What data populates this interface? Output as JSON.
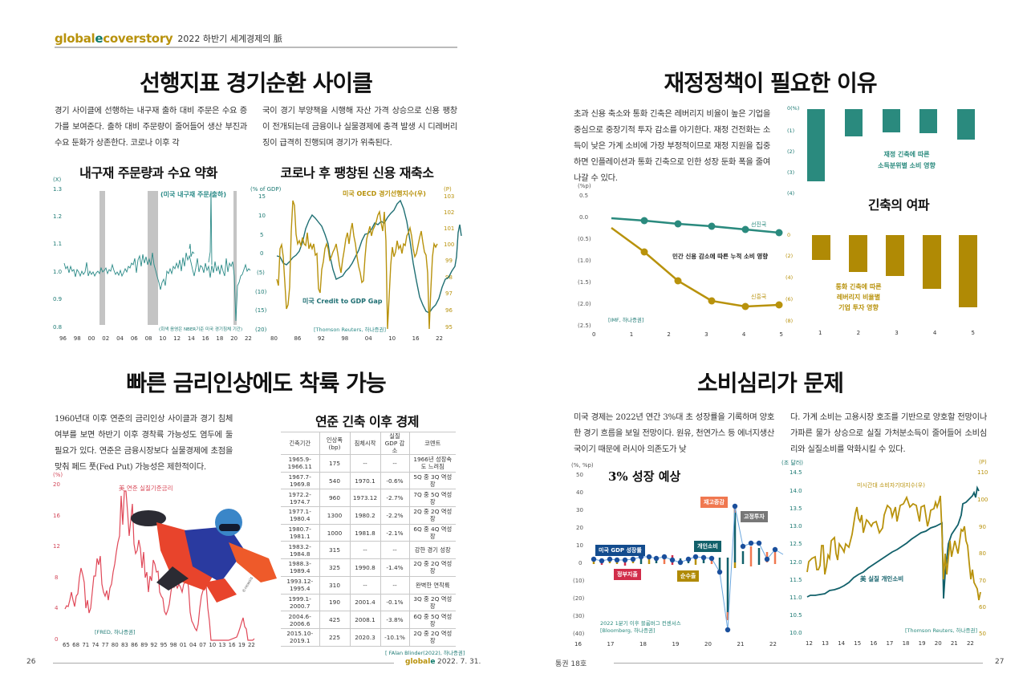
{
  "header": {
    "brand_part1": "global",
    "brand_part2": "e",
    "brand_part3": "coverstory",
    "subtitle": "2022 하반기 세계경제의 脈"
  },
  "section1": {
    "title": "선행지표 경기순환 사이클",
    "col1": "경기 사이클에 선행하는 내구재 출하 대비 주문은 수요 증가를 보여준다. 출하 대비 주문량이 줄어들어 생산 부진과 수요 둔화가 상존한다. 코로나 이후 각",
    "col2": "국이 경기 부양책을 시행해 자산 가격 상승으로 신용 팽창이 전개되는데 금융이나 실물경제에 충격 발생 시 디레버리징이 급격히 진행되며 경기가 위축된다.",
    "chart1_title": "내구재 주문량과 수요 약화",
    "chart2_title": "코로나 후 팽창된 신용 재축소"
  },
  "section2": {
    "title": "재정정책이 필요한 이유",
    "body": "초과 신용 축소와 통화 긴축은 레버리지 비율이 높은 기업을 중심으로 중장기적 투자 감소를 야기한다. 재정 건전화는 소득이 낮은 가계 소비에 가장 부정적이므로 재정 지원을 집중하면 인플레이션과 통화 긴축으로 인한 성장 둔화 폭을 줄여나갈 수 있다.",
    "subtitle_right": "긴축의 여파"
  },
  "section3": {
    "title": "빠른 금리인상에도 착륙 가능",
    "body": "1960년대 이후 연준의 금리인상 사이클과 경기 침체 여부를 보면 하반기 이후 경착륙 가능성도 염두에 둘 필요가 있다. 연준은 금융시장보다 실물경제에 초점을 맞춰 페드 풋(Fed Put) 가능성은 제한적이다.",
    "photo_credit": "©newsis",
    "table_title": "연준 긴축 이후 경제",
    "table": {
      "headers": [
        "긴축기간",
        "인상폭(bp)",
        "침체시작",
        "실질 GDP 감소",
        "코멘트"
      ],
      "rows": [
        [
          "1965.9-1966.11",
          "175",
          "--",
          "--",
          "1966년 성장속도 느려짐"
        ],
        [
          "1967.7-1969.8",
          "540",
          "1970.1",
          "-0.6%",
          "5Q 중 3Q 역성장"
        ],
        [
          "1972.2-1974.7",
          "960",
          "1973.12",
          "-2.7%",
          "7Q 중 5Q 역성장"
        ],
        [
          "1977.1-1980.4",
          "1300",
          "1980.2",
          "-2.2%",
          "2Q 중 2Q 역성장"
        ],
        [
          "1980.7-1981.1",
          "1000",
          "1981.8",
          "-2.1%",
          "6Q 중 4Q 역성장"
        ],
        [
          "1983.2-1984.8",
          "315",
          "--",
          "--",
          "강한 경기 성장"
        ],
        [
          "1988.3-1989.4",
          "325",
          "1990.8",
          "-1.4%",
          "2Q 중 2Q 역성장"
        ],
        [
          "1993.12-1995.4",
          "310",
          "--",
          "--",
          "완벽한 연착륙"
        ],
        [
          "1999.1-2000.7",
          "190",
          "2001.4",
          "-0.1%",
          "3Q 중 2Q 역성장"
        ],
        [
          "2004.6-2006.6",
          "425",
          "2008.1",
          "-3.8%",
          "6Q 중 5Q 역성장"
        ],
        [
          "2015.10-2019.1",
          "225",
          "2020.3",
          "-10.1%",
          "2Q 중 2Q 역성장"
        ]
      ],
      "source": "[ FAlan Blinder(2022), 하나증권]"
    }
  },
  "section4": {
    "title": "소비심리가 문제",
    "col1": "미국 경제는 2022년 연간 3%대 초 성장률을 기록하며 양호한 경기 흐름을 보일 전망이다. 원유, 천연가스 등 에너지생산국이기 때문에 러시아 의존도가 낮",
    "col2": "다. 가계 소비는 고용시장 호조를 기반으로 양호할 전망이나 가파른 물가 상승으로 실질 가처분소득이 줄어들어 소비심리와 실질소비를 악화시킬 수 있다.",
    "chart_title": "3% 성장 예상"
  },
  "footer": {
    "page_left": "26",
    "page_right": "27",
    "brand": "globale",
    "date": "2022. 7. 31.",
    "issue": "통권 18호"
  },
  "chart_data": [
    {
      "type": "line",
      "title": "내구재 주문량과 수요 약화",
      "series": [
        {
          "name": "(미국 내구재 주문/출하)",
          "color": "#2a8a87"
        }
      ],
      "ylabel": "(X)",
      "yticks": [
        "1.3",
        "1.2",
        "1.1",
        "1.0",
        "0.9",
        "0.8"
      ],
      "ylim": [
        0.8,
        1.3
      ],
      "xticks": [
        "96",
        "98",
        "00",
        "02",
        "04",
        "06",
        "08",
        "10",
        "12",
        "14",
        "16",
        "18",
        "20",
        "22"
      ],
      "shaded_recessions": [
        [
          "2001.3",
          "2001.11"
        ],
        [
          "2007.12",
          "2009.6"
        ],
        [
          "2020.2",
          "2020.4"
        ]
      ],
      "x": [
        1996,
        1997,
        1998,
        1999,
        2000,
        2000.5,
        2001,
        2002,
        2003,
        2004,
        2005,
        2006,
        2006.5,
        2007,
        2007.8,
        2008,
        2008.5,
        2009,
        2009.5,
        2010,
        2011,
        2012,
        2013,
        2013.8,
        2014.4,
        2015,
        2016,
        2017,
        2018,
        2019,
        2019.8,
        2020.2,
        2020.5,
        2021,
        2022
      ],
      "values": [
        1.02,
        0.99,
        0.98,
        0.97,
        0.98,
        1.1,
        0.97,
        0.95,
        0.96,
        0.99,
        1.01,
        1.03,
        1.06,
        1.05,
        1.02,
        1.08,
        0.99,
        0.93,
        0.87,
        0.99,
        1.0,
        1.04,
        1.02,
        1.1,
        1.27,
        0.99,
        0.98,
        1.0,
        0.99,
        1.0,
        1.05,
        0.82,
        0.96,
        1.02,
        1.02
      ],
      "annotations": [
        "(회색 음영은 NBER기준 미국 경기침체 기간)"
      ]
    },
    {
      "type": "line",
      "title": "코로나 후 팽창된 신용 재축소",
      "ylabel_left": "(% of GDP)",
      "ylabel_right": "(P)",
      "yticks_left": [
        "15",
        "10",
        "5",
        "0",
        "(5)",
        "(10)",
        "(15)",
        "(20)"
      ],
      "yticks_right": [
        "103",
        "102",
        "101",
        "100",
        "99",
        "98",
        "97",
        "96",
        "95"
      ],
      "xticks": [
        "80",
        "86",
        "92",
        "98",
        "04",
        "10",
        "16",
        "22"
      ],
      "series": [
        {
          "name": "미국 Credit to GDP Gap",
          "axis": "left",
          "color": "#1f6f73",
          "x": [
            1980,
            1982,
            1984,
            1986,
            1988,
            1990,
            1992,
            1994,
            1996,
            1998,
            2000,
            2002,
            2004,
            2006,
            2008,
            2010,
            2012,
            2014,
            2016,
            2018,
            2019.5,
            2020.5,
            2021.5
          ],
          "values": [
            -1,
            -3,
            -1,
            3,
            10,
            8,
            2,
            -7,
            -6,
            -3,
            5,
            3,
            8,
            10,
            12,
            0,
            -10,
            -16,
            -13,
            -7,
            -5,
            7,
            1
          ]
        },
        {
          "name": "미국 OECD 경기선행지수(우)",
          "axis": "right",
          "color": "#b8920c",
          "x": [
            1980,
            1981,
            1982,
            1983,
            1984,
            1985,
            1986,
            1988,
            1990,
            1991,
            1992,
            1994,
            1996,
            1998,
            2000,
            2002,
            2004,
            2006,
            2008,
            2009,
            2010,
            2012,
            2014,
            2016,
            2018,
            2020,
            2020.5,
            2021,
            2022
          ],
          "values": [
            98,
            100,
            96,
            102.5,
            102.5,
            100.5,
            100.2,
            100.5,
            99.8,
            97,
            99.5,
            100.5,
            99,
            100,
            101,
            98,
            100.5,
            101,
            102,
            95,
            100,
            100,
            101,
            99.5,
            100.5,
            95,
            100.5,
            100.5,
            100
          ]
        }
      ],
      "annotations": [
        "[Thomson Reuters, 하나증권]"
      ]
    },
    {
      "type": "bar",
      "title": "재정 긴축에 따른 소득분위별 소비 영향",
      "categories": [
        "1",
        "2",
        "3",
        "4",
        "5"
      ],
      "values": [
        -3.4,
        -1.3,
        -1.1,
        -1.15,
        -1.45
      ],
      "ylabel": "(%)",
      "yticks": [
        "0(%)",
        "(1)",
        "(2)",
        "(3)",
        "(4)"
      ],
      "ylim": [
        -4,
        0
      ],
      "color": "#2a8a7e"
    },
    {
      "type": "line",
      "title": "민간 신용 감소에 따른 누적 소비 영향",
      "ylabel": "(%p)",
      "x": [
        0,
        1,
        2,
        3,
        4,
        5
      ],
      "xticks": [
        "0",
        "1",
        "2",
        "3",
        "4",
        "5"
      ],
      "yticks": [
        "0.5",
        "0.0",
        "(0.5)",
        "(1.0)",
        "(1.5)",
        "(2.0)",
        "(2.5)"
      ],
      "ylim": [
        -2.5,
        0.5
      ],
      "series": [
        {
          "name": "선진국",
          "color": "#2a8a7e",
          "values": [
            -0.02,
            -0.05,
            -0.13,
            -0.21,
            -0.28,
            -0.36
          ]
        },
        {
          "name": "신흥국",
          "color": "#b8920c",
          "values": [
            -0.25,
            -0.78,
            -1.45,
            -1.92,
            -2.05,
            -2.02
          ]
        }
      ],
      "annotations": [
        "[IMF, 하나증권]"
      ]
    },
    {
      "type": "bar",
      "title": "통화 긴축에 따른 레버리지 비율별 기업 투자 영향",
      "categories": [
        "1",
        "2",
        "3",
        "4",
        "5"
      ],
      "values": [
        -2.3,
        -3.4,
        -3.8,
        -5.0,
        -6.7
      ],
      "yticks": [
        "0",
        "(2)",
        "(4)",
        "(6)",
        "(8)"
      ],
      "ylim": [
        -8,
        0
      ],
      "color": "#b08a05"
    },
    {
      "type": "line",
      "title": "美 연준 실질기준금리",
      "ylabel": "(%)",
      "yticks": [
        "20",
        "16",
        "12",
        "8",
        "4",
        "0"
      ],
      "ylim": [
        0,
        20
      ],
      "xticks": [
        "65",
        "68",
        "71",
        "74",
        "77",
        "80",
        "83",
        "86",
        "89",
        "92",
        "95",
        "98",
        "01",
        "04",
        "07",
        "10",
        "13",
        "16",
        "19",
        "22"
      ],
      "x": [
        1965,
        1966,
        1967,
        1968,
        1969,
        1970,
        1971,
        1972,
        1973,
        1974,
        1975,
        1976,
        1977,
        1978,
        1979,
        1980,
        1980.5,
        1981,
        1981.5,
        1982,
        1983,
        1984,
        1985,
        1986,
        1987,
        1988,
        1989,
        1990,
        1991,
        1992,
        1993,
        1994,
        1995,
        1996,
        1997,
        1998,
        1999,
        2000,
        2001,
        2002,
        2003,
        2004,
        2005,
        2006,
        2007,
        2008,
        2009,
        2015,
        2016,
        2017,
        2018,
        2019,
        2020,
        2021,
        2022
      ],
      "values": [
        4,
        4.5,
        4,
        6,
        9,
        8,
        4,
        5,
        11,
        12,
        6,
        5,
        6,
        8,
        11,
        17,
        9,
        19,
        12,
        14,
        9,
        11,
        8,
        6,
        7,
        8,
        10,
        8,
        5,
        3,
        3,
        5,
        6,
        5.5,
        5.5,
        5,
        5.5,
        6.5,
        2,
        1.5,
        1,
        1.5,
        3.5,
        5.2,
        5,
        2,
        0.2,
        0.2,
        0.5,
        1.2,
        2,
        2.5,
        0.2,
        0.1,
        0.5
      ],
      "color": "#d94b5a",
      "annotations": [
        "[FRED, 하나증권]"
      ]
    },
    {
      "type": "bar",
      "title": "3% 성장 예상",
      "ylabel": "(%, %p)",
      "yticks": [
        "50",
        "40",
        "30",
        "20",
        "10",
        "0",
        "(10)",
        "(20)",
        "(30)",
        "(40)"
      ],
      "ylim": [
        -40,
        50
      ],
      "xticks": [
        "16",
        "17",
        "18",
        "19",
        "20",
        "21",
        "22"
      ],
      "legend": [
        "미국 GDP 성장률",
        "정부지출",
        "순수출",
        "개인소비",
        "재고증감",
        "고정투자"
      ],
      "series": [
        {
          "name": "미국 GDP 성장률",
          "color": "#1a4f9c",
          "values": [
            2.3,
            1.5,
            2.3,
            1.9,
            1.8,
            2.3,
            3.0,
            3.5,
            2.9,
            3.3,
            2.2,
            1.1,
            2.4,
            3.2,
            2.8,
            2.1,
            -5.1,
            -31.2,
            33.8,
            4.5,
            6.3,
            6.7,
            2.3,
            6.9,
            -1.6
          ]
        }
      ],
      "annotations": [
        "2022 1분기 이후 블룸버그 컨센서스",
        "[Bloomberg, 하나증권]"
      ]
    },
    {
      "type": "line",
      "title": "美 실질 개인소비 / 미시간대 소비자기대지수",
      "ylabel_left": "(조 달러)",
      "ylabel_right": "(P)",
      "yticks_left": [
        "14.5",
        "14.0",
        "13.5",
        "13.0",
        "12.5",
        "12.0",
        "11.5",
        "11.0",
        "10.5",
        "10.0"
      ],
      "yticks_right": [
        "110",
        "100",
        "90",
        "80",
        "70",
        "60",
        "50"
      ],
      "xticks": [
        "12",
        "13",
        "14",
        "15",
        "16",
        "17",
        "18",
        "19",
        "20",
        "21",
        "22"
      ],
      "series": [
        {
          "name": "美 실질 개인소비",
          "axis": "left",
          "color": "#11606a",
          "x": [
            2012,
            2013,
            2014,
            2015,
            2016,
            2017,
            2018,
            2019,
            2020,
            2020.25,
            2020.5,
            2021,
            2021.5,
            2022
          ],
          "values": [
            11.0,
            11.15,
            11.3,
            11.6,
            11.9,
            12.2,
            12.5,
            12.9,
            13.2,
            11.0,
            12.5,
            13.3,
            13.7,
            14.0
          ]
        },
        {
          "name": "미시간대 소비자기대지수(우)",
          "axis": "right",
          "color": "#b8920c",
          "x": [
            2012,
            2013,
            2014,
            2015,
            2016,
            2017,
            2018,
            2019,
            2020,
            2020.3,
            2021,
            2021.5,
            2022,
            2022.3
          ],
          "values": [
            72,
            78,
            82,
            97,
            90,
            98,
            100,
            95,
            100,
            73,
            82,
            88,
            66,
            62
          ]
        }
      ],
      "annotations": [
        "[Thomson Reuters, 하나증권]"
      ]
    }
  ],
  "chart_labels": {
    "c1_series": "(미국 내구재 주문/출하)",
    "c1_note": "(회색 음영은 NBER기준 미국 경기침체 기간)",
    "c1_unit": "(X)",
    "c2_unit_left": "(% of GDP)",
    "c2_unit_right": "(P)",
    "c2_oecd": "미국 OECD 경기선행지수(우)",
    "c2_gap": "미국 Credit to GDP Gap",
    "c2_src": "[Thomson Reuters, 하나증권]",
    "c3_label1": "재정 긴축에 따른",
    "c3_label2": "소득분위별 소비 영향",
    "c4_unit": "(%p)",
    "c4_title": "민간 신용 감소에 따른 누적 소비 영향",
    "c4_adv": "선진국",
    "c4_em": "신흥국",
    "c4_src": "[IMF, 하나증권]",
    "c5_label1": "통화 긴축에 따른",
    "c5_label2": "레버리지 비율별",
    "c5_label3": "기업 투자 영향",
    "c6_unit": "(%)",
    "c6_series": "美 연준 실질기준금리",
    "c6_src": "[FRED, 하나증권]",
    "c7_unit": "(%, %p)",
    "c7_note1": "2022 1분기 이후 블룸버그 컨센서스",
    "c7_note2": "[Bloomberg, 하나증권]",
    "c7_gdp": "미국 GDP 성장률",
    "c7_gov": "정부지출",
    "c7_net": "순수출",
    "c7_pce": "개인소비",
    "c7_inv": "재고증감",
    "c7_fix": "고정투자",
    "c8_unit_left": "(조 달러)",
    "c8_unit_right": "(P)",
    "c8_mich": "미시간대 소비자기대지수(우)",
    "c8_pce": "美 실질 개인소비",
    "c8_src": "[Thomson Reuters, 하나증권]"
  },
  "colors": {
    "teal": "#2a8a7e",
    "gold": "#b8920c",
    "red": "#d94b5a",
    "navy": "#1a4f9c",
    "dark_teal": "#11606a"
  }
}
